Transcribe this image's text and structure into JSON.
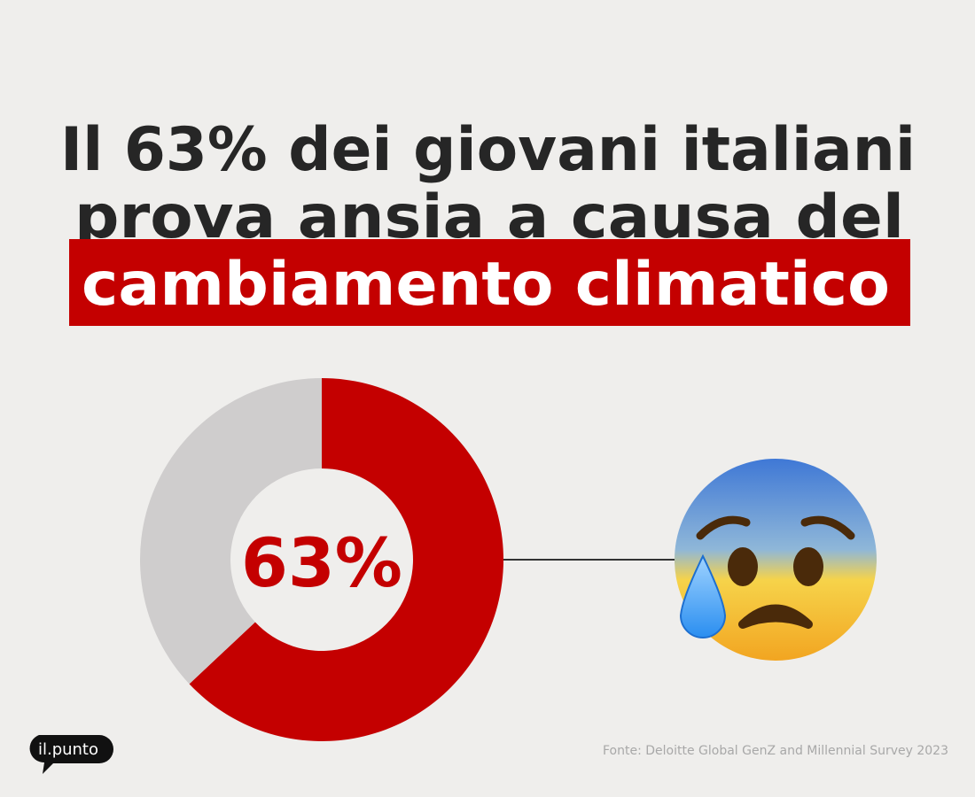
{
  "chart_data": {
    "type": "donut",
    "title_lines": [
      "Il 63% dei giovani italiani",
      "prova ansia a causa del"
    ],
    "title_highlight": "cambiamento climatico",
    "values": [
      63,
      37
    ],
    "value_labels": [
      "63%",
      null
    ],
    "colors": [
      "#c40000",
      "#cfcdcd"
    ],
    "highlight_color": "#c40000",
    "source": "Fonte: Deloitte Global GenZ and Millennial Survey 2023",
    "brand": "il.punto"
  }
}
